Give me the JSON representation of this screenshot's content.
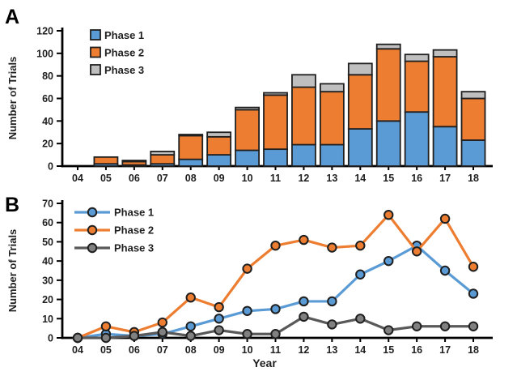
{
  "chart_data": [
    {
      "panel": "A",
      "type": "bar",
      "stacked": true,
      "ylabel": "Number of Trials",
      "categories": [
        "04",
        "05",
        "06",
        "07",
        "08",
        "09",
        "10",
        "11",
        "12",
        "13",
        "14",
        "15",
        "16",
        "17",
        "18"
      ],
      "series": [
        {
          "name": "Phase 1",
          "fill": "#5B9BD5",
          "values": [
            0,
            2,
            1,
            2,
            6,
            10,
            14,
            15,
            19,
            19,
            33,
            40,
            48,
            35,
            23
          ]
        },
        {
          "name": "Phase 2",
          "fill": "#ED7D31",
          "values": [
            0,
            6,
            3,
            8,
            21,
            16,
            36,
            48,
            51,
            47,
            48,
            64,
            45,
            62,
            37
          ]
        },
        {
          "name": "Phase 3",
          "fill": "#BFBFBF",
          "values": [
            0,
            0,
            1,
            3,
            1,
            4,
            2,
            2,
            11,
            7,
            10,
            4,
            6,
            6,
            6
          ]
        }
      ],
      "ylim": [
        0,
        120
      ],
      "y_ticks": [
        0,
        20,
        40,
        60,
        80,
        100,
        120
      ],
      "outline": "#1F1F1F",
      "legend_position": "upper-left",
      "grid": false
    },
    {
      "panel": "B",
      "type": "line",
      "ylabel": "Number of Trials",
      "xlabel": "Year",
      "categories": [
        "04",
        "05",
        "06",
        "07",
        "08",
        "09",
        "10",
        "11",
        "12",
        "13",
        "14",
        "15",
        "16",
        "17",
        "18"
      ],
      "series": [
        {
          "name": "Phase 1",
          "line": "#5B9BD5",
          "marker": "#5B9BD5",
          "values": [
            0,
            2,
            1,
            2,
            6,
            10,
            14,
            15,
            19,
            19,
            33,
            40,
            48,
            35,
            23
          ]
        },
        {
          "name": "Phase 2",
          "line": "#ED7D31",
          "marker": "#ED7D31",
          "values": [
            0,
            6,
            3,
            8,
            21,
            16,
            36,
            48,
            51,
            47,
            48,
            64,
            45,
            62,
            37
          ]
        },
        {
          "name": "Phase 3",
          "line": "#595959",
          "marker": "#808080",
          "values": [
            0,
            0,
            1,
            3,
            1,
            4,
            2,
            2,
            11,
            7,
            10,
            4,
            6,
            6,
            6
          ]
        }
      ],
      "ylim": [
        0,
        70
      ],
      "y_ticks": [
        0,
        10,
        20,
        30,
        40,
        50,
        60,
        70
      ],
      "marker_outline": "#1F1F1F",
      "legend_position": "upper-left",
      "grid": false
    }
  ]
}
